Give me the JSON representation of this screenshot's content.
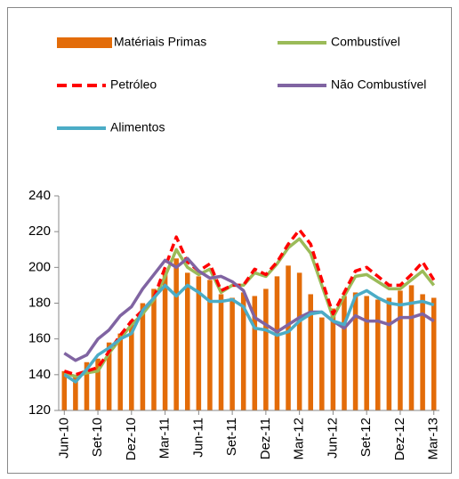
{
  "chart_data": {
    "type": "bar",
    "categories": [
      "Jun-10",
      null,
      null,
      "Set-10",
      null,
      null,
      "Dez-10",
      null,
      null,
      "Mar-11",
      null,
      null,
      "Jun-11",
      null,
      null,
      "Set-11",
      null,
      null,
      "Dez-11",
      null,
      null,
      "Mar-12",
      null,
      null,
      "Jun-12",
      null,
      null,
      "Set-12",
      null,
      null,
      "Dez-12",
      null,
      null,
      "Mar-13"
    ],
    "series": [
      {
        "name": "Matériais Primas",
        "type": "bar",
        "color": "#e36c09",
        "values": [
          142,
          140,
          147,
          149,
          158,
          163,
          170,
          180,
          188,
          198,
          205,
          197,
          195,
          193,
          185,
          183,
          186,
          184,
          188,
          195,
          201,
          197,
          185,
          172,
          177,
          184,
          186,
          184,
          182,
          183,
          187,
          190,
          185,
          183
        ]
      },
      {
        "name": "Combustível",
        "type": "line",
        "color": "#9bbb59",
        "values": [
          141,
          139,
          141,
          142,
          152,
          160,
          168,
          174,
          182,
          195,
          210,
          200,
          196,
          199,
          186,
          190,
          190,
          197,
          195,
          202,
          211,
          216,
          208,
          190,
          172,
          184,
          195,
          196,
          192,
          188,
          188,
          193,
          198,
          190
        ]
      },
      {
        "name": "Petróleo",
        "type": "line",
        "dashed": true,
        "color": "#ff0000",
        "values": [
          142,
          140,
          142,
          144,
          153,
          162,
          170,
          176,
          183,
          200,
          217,
          203,
          198,
          202,
          187,
          190,
          190,
          199,
          196,
          203,
          213,
          221,
          213,
          193,
          174,
          186,
          198,
          200,
          195,
          190,
          190,
          196,
          203,
          193
        ]
      },
      {
        "name": "Não Combustível",
        "type": "line",
        "color": "#8064a2",
        "values": [
          152,
          148,
          151,
          160,
          165,
          173,
          178,
          188,
          196,
          204,
          200,
          205,
          198,
          194,
          195,
          192,
          187,
          172,
          168,
          164,
          168,
          172,
          175,
          175,
          170,
          166,
          173,
          170,
          170,
          168,
          172,
          172,
          174,
          170
        ]
      },
      {
        "name": "Alimentos",
        "type": "line",
        "color": "#4bacc6",
        "values": [
          140,
          136,
          143,
          151,
          155,
          160,
          163,
          176,
          183,
          190,
          184,
          190,
          186,
          181,
          181,
          182,
          178,
          166,
          165,
          162,
          164,
          170,
          174,
          175,
          170,
          168,
          184,
          187,
          183,
          180,
          179,
          180,
          181,
          179
        ]
      }
    ],
    "ylim": [
      120,
      240
    ],
    "yticks": [
      120,
      140,
      160,
      180,
      200,
      220,
      240
    ],
    "grid": false
  }
}
